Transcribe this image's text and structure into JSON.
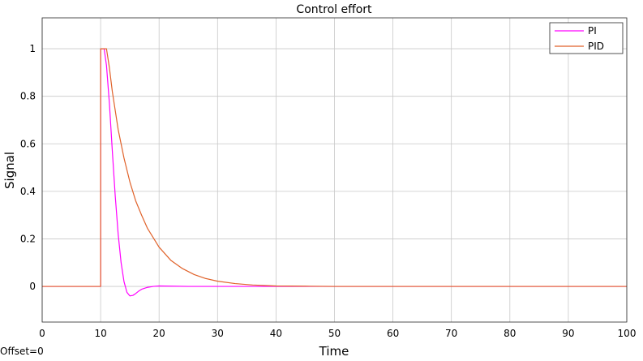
{
  "chart_data": {
    "type": "line",
    "title": "Control effort",
    "xlabel": "Time",
    "ylabel": "Signal",
    "xlim": [
      0,
      100
    ],
    "ylim": [
      -0.15,
      1.13
    ],
    "xticks": [
      "0",
      "10",
      "20",
      "30",
      "40",
      "50",
      "60",
      "70",
      "80",
      "90",
      "100"
    ],
    "yticks": [
      "0",
      "0.2",
      "0.4",
      "0.6",
      "0.8",
      "1"
    ],
    "grid": true,
    "legend_position": "top-right",
    "series": [
      {
        "name": "PI",
        "color": "#ff00ff",
        "x": [
          0,
          10,
          10,
          10.6,
          11,
          11.5,
          12,
          12.5,
          13,
          13.5,
          14,
          14.5,
          15,
          15.5,
          16,
          16.5,
          17,
          18,
          19,
          20,
          22,
          25,
          30,
          40,
          100
        ],
        "y": [
          0,
          0,
          1,
          1,
          0.93,
          0.77,
          0.57,
          0.38,
          0.22,
          0.1,
          0.02,
          -0.025,
          -0.04,
          -0.038,
          -0.03,
          -0.02,
          -0.012,
          -0.004,
          0,
          0.002,
          0.001,
          0,
          0,
          0,
          0
        ]
      },
      {
        "name": "PID",
        "color": "#e0622a",
        "x": [
          0,
          10,
          10,
          11,
          11.5,
          12,
          13,
          14,
          15,
          16,
          17,
          18,
          20,
          22,
          24,
          26,
          28,
          30,
          33,
          36,
          40,
          45,
          50,
          100
        ],
        "y": [
          0,
          0,
          1,
          1,
          0.92,
          0.82,
          0.66,
          0.54,
          0.44,
          0.36,
          0.3,
          0.245,
          0.165,
          0.11,
          0.075,
          0.05,
          0.033,
          0.022,
          0.012,
          0.006,
          0.002,
          0.001,
          0,
          0
        ]
      }
    ]
  },
  "footer": {
    "offset_text": "Offset=0"
  }
}
